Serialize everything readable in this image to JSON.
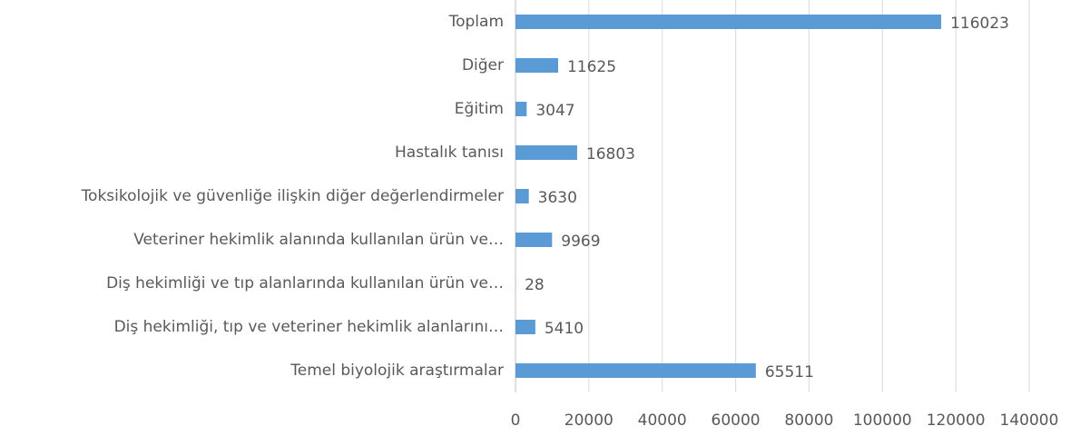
{
  "chart_data": {
    "type": "bar",
    "orientation": "horizontal",
    "categories": [
      "Toplam",
      "Diğer",
      "Eğitim",
      "Hastalık tanısı",
      "Toksikolojik ve güvenliğe ilişkin diğer değerlendirmeler",
      "Veteriner hekimlik alanında kullanılan ürün ve…",
      "Diş hekimliği ve tıp alanlarında kullanılan ürün ve…",
      "Diş hekimliği, tıp ve veteriner hekimlik alanlarını…",
      "Temel biyolojik araştırmalar"
    ],
    "values": [
      116023,
      11625,
      3047,
      16803,
      3630,
      9969,
      28,
      5410,
      65511
    ],
    "color": "#5b9bd5",
    "xlim": [
      0,
      140000
    ],
    "xticks": [
      0,
      20000,
      40000,
      60000,
      80000,
      100000,
      120000,
      140000
    ],
    "grid": true,
    "data_labels": true
  }
}
